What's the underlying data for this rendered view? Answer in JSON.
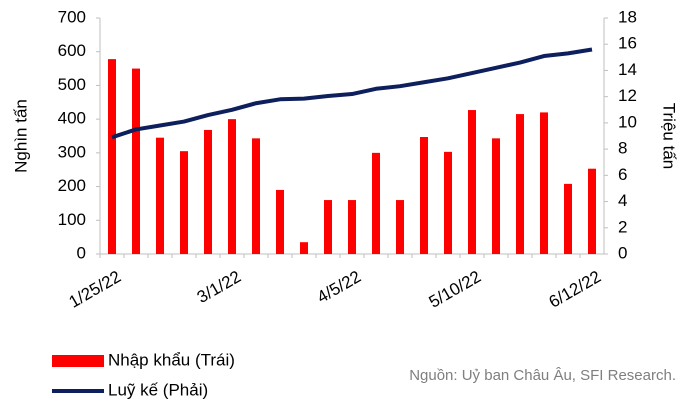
{
  "chart_data": {
    "type": "bar_line",
    "categories": [
      "1/25/22",
      null,
      null,
      null,
      null,
      "3/1/22",
      null,
      null,
      null,
      null,
      "4/5/22",
      null,
      null,
      null,
      null,
      "5/10/22",
      null,
      null,
      null,
      null,
      "6/12/22"
    ],
    "series": [
      {
        "name": "Nhập khẩu (Trái)",
        "color": "#ff0000",
        "type": "bar",
        "values": [
          578,
          550,
          345,
          305,
          368,
          400,
          343,
          190,
          35,
          160,
          160,
          300,
          160,
          347,
          303,
          427,
          343,
          415,
          420,
          208,
          253
        ]
      },
      {
        "name": "Luỹ kế (Phải)",
        "color": "#0d1f5c",
        "type": "line",
        "axis": "y2",
        "values": [
          8.9,
          9.5,
          9.8,
          10.1,
          10.6,
          11.0,
          11.5,
          11.8,
          11.85,
          12.05,
          12.2,
          12.6,
          12.8,
          13.1,
          13.4,
          13.8,
          14.2,
          14.6,
          15.1,
          15.3,
          15.6
        ]
      }
    ],
    "ylabel": "Nghìn tấn",
    "y2label": "Triệu tấn",
    "ylim": [
      0,
      700
    ],
    "yticks": [
      0,
      100,
      200,
      300,
      400,
      500,
      600,
      700
    ],
    "y2lim": [
      0,
      18
    ],
    "y2ticks": [
      0,
      2,
      4,
      6,
      8,
      10,
      12,
      14,
      16,
      18
    ],
    "source": "Nguồn: Uỷ ban Châu Âu, SFI Research."
  }
}
